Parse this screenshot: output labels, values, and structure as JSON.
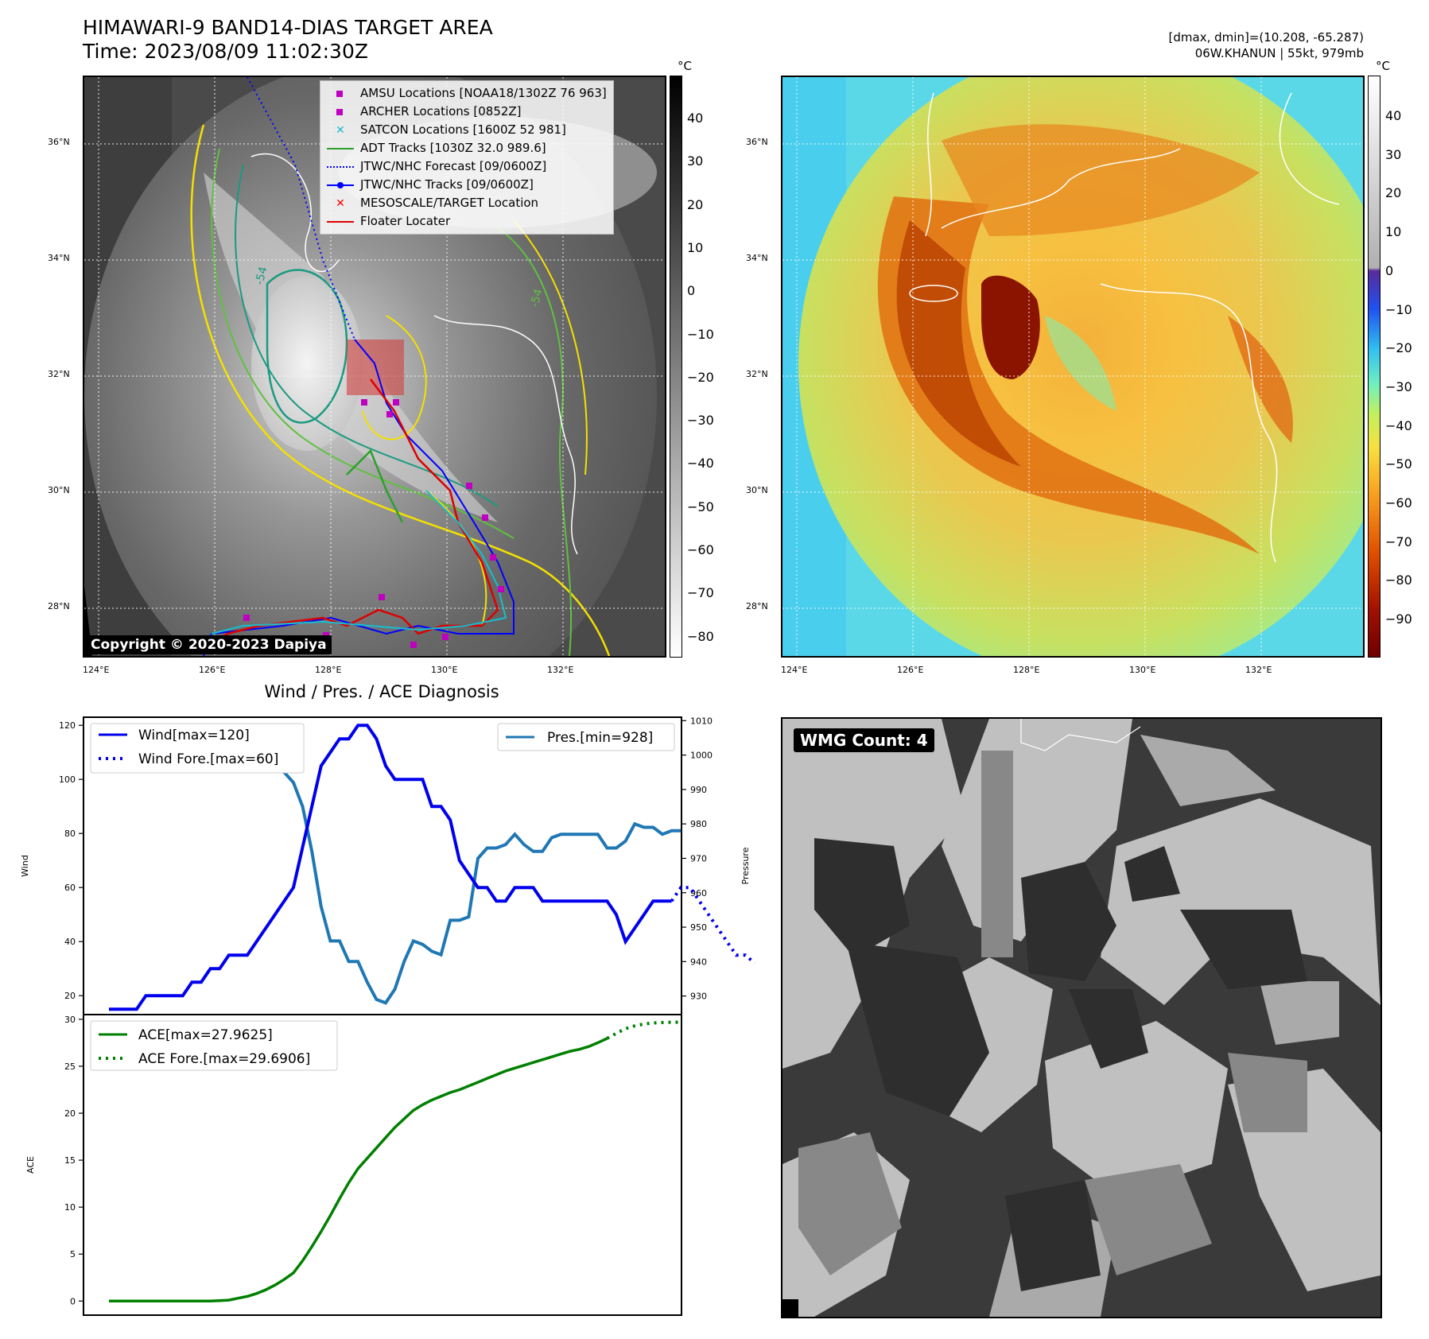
{
  "header": {
    "title": "HIMAWARI-9 BAND14-DIAS TARGET AREA",
    "time": "Time: 2023/08/09 11:02:30Z",
    "dmax_dmin": "[dmax, dmin]=(10.208, -65.287)",
    "storm": "06W.KHANUN | 55kt, 979mb"
  },
  "maps": {
    "lat_labels": [
      "36°N",
      "34°N",
      "32°N",
      "30°N",
      "28°N"
    ],
    "lon_labels": [
      "124°E",
      "126°E",
      "128°E",
      "130°E",
      "132°E"
    ],
    "contour_label": "-54",
    "copyright": "Copyright © 2020-2023 Dapiya"
  },
  "legend": {
    "amsu": "AMSU Locations [NOAA18/1302Z 76 963]",
    "archer": "ARCHER Locations [0852Z]",
    "satcon": "SATCON Locations [1600Z 52 981]",
    "adt": "ADT Tracks [1030Z 32.0 989.6]",
    "jtwc_forecast": "JTWC/NHC Forecast [09/0600Z]",
    "jtwc_tracks": "JTWC/NHC Tracks [09/0600Z]",
    "mesoscale": "MESOSCALE/TARGET Location",
    "floater": "Floater Locater"
  },
  "colorbars": {
    "unit": "°C",
    "left_ticks": [
      "40",
      "30",
      "20",
      "10",
      "0",
      "−10",
      "−20",
      "−30",
      "−40",
      "−50",
      "−60",
      "−70",
      "−80"
    ],
    "right_ticks": [
      "40",
      "30",
      "20",
      "10",
      "0",
      "−10",
      "−20",
      "−30",
      "−40",
      "−50",
      "−60",
      "−70",
      "−80",
      "−90"
    ]
  },
  "wmg": {
    "label": "WMG Count: 4"
  },
  "colors": {
    "wind": "#0000ee",
    "pressure": "#1f77b4",
    "ace": "#008000",
    "amsu": "#c000c0",
    "satcon": "#17becf",
    "adt": "#2ca02c",
    "track": "#0000ff",
    "floater": "#dd0000",
    "contour_yellow": "#f5e000",
    "contour_green": "#60c040",
    "contour_teal": "#1a9a80"
  },
  "chart_data": [
    {
      "type": "line",
      "title": "Wind / Pres. / ACE Diagnosis",
      "ylabel": "Wind",
      "ylabel_right": "Pressure",
      "ylim": [
        13,
        123
      ],
      "ylim_right": [
        924.6,
        1011
      ],
      "yticks": [
        "20",
        "40",
        "60",
        "80",
        "100",
        "120"
      ],
      "yticks_right": [
        "930",
        "940",
        "950",
        "960",
        "970",
        "980",
        "990",
        "1000",
        "1010"
      ],
      "series": [
        {
          "name": "Wind[max=120]",
          "axis": "left",
          "style": "solid",
          "values": [
            15,
            15,
            15,
            15,
            20,
            20,
            20,
            20,
            20,
            25,
            25,
            30,
            30,
            35,
            35,
            35,
            40,
            45,
            50,
            55,
            60,
            75,
            90,
            105,
            110,
            115,
            115,
            120,
            120,
            115,
            105,
            100,
            100,
            100,
            100,
            90,
            90,
            85,
            70,
            65,
            60,
            60,
            55,
            55,
            60,
            60,
            60,
            55,
            55,
            55,
            55,
            55,
            55,
            55,
            55,
            50,
            40,
            45,
            50,
            55,
            55,
            55
          ]
        },
        {
          "name": "Wind Fore.[max=60]",
          "axis": "left",
          "style": "dotted",
          "x_start": 61,
          "values": [
            55,
            60,
            60,
            55,
            50,
            45,
            40,
            35,
            35,
            32
          ]
        },
        {
          "name": "Pres.[min=928]",
          "axis": "right",
          "style": "solid",
          "values": [
            1006,
            1006,
            1006,
            1006,
            1007,
            1007,
            1007,
            1006,
            1006,
            1006,
            1005,
            1004,
            1002,
            1002,
            1002,
            1000,
            999,
            996,
            996,
            995,
            992,
            985,
            972,
            956,
            946,
            946,
            940,
            940,
            934,
            929,
            928,
            932,
            940,
            946,
            945,
            943,
            942,
            952,
            952,
            953,
            970,
            973,
            973,
            974,
            977,
            974,
            972,
            972,
            976,
            977,
            977,
            977,
            977,
            977,
            973,
            973,
            975,
            980,
            979,
            979,
            977,
            978,
            978
          ]
        }
      ]
    },
    {
      "type": "line",
      "ylabel": "ACE",
      "ylim": [
        -1.5,
        30.5
      ],
      "yticks": [
        "0",
        "5",
        "10",
        "15",
        "20",
        "25",
        "30"
      ],
      "series": [
        {
          "name": "ACE[max=27.9625]",
          "style": "solid",
          "values": [
            0,
            0,
            0,
            0,
            0,
            0,
            0,
            0,
            0,
            0,
            0,
            0,
            0.05,
            0.1,
            0.3,
            0.5,
            0.8,
            1.2,
            1.7,
            2.3,
            3.0,
            4.3,
            5.8,
            7.4,
            9.1,
            10.9,
            12.6,
            14.1,
            15.2,
            16.3,
            17.4,
            18.5,
            19.4,
            20.3,
            20.9,
            21.4,
            21.8,
            22.2,
            22.5,
            22.9,
            23.3,
            23.7,
            24.1,
            24.5,
            24.8,
            25.1,
            25.4,
            25.7,
            26.0,
            26.3,
            26.6,
            26.8,
            27.1,
            27.5,
            27.96
          ]
        },
        {
          "name": "ACE Fore.[max=29.6906]",
          "style": "dotted",
          "x_start": 54,
          "values": [
            27.96,
            28.5,
            29.0,
            29.3,
            29.5,
            29.6,
            29.65,
            29.69,
            29.69
          ]
        }
      ]
    }
  ]
}
